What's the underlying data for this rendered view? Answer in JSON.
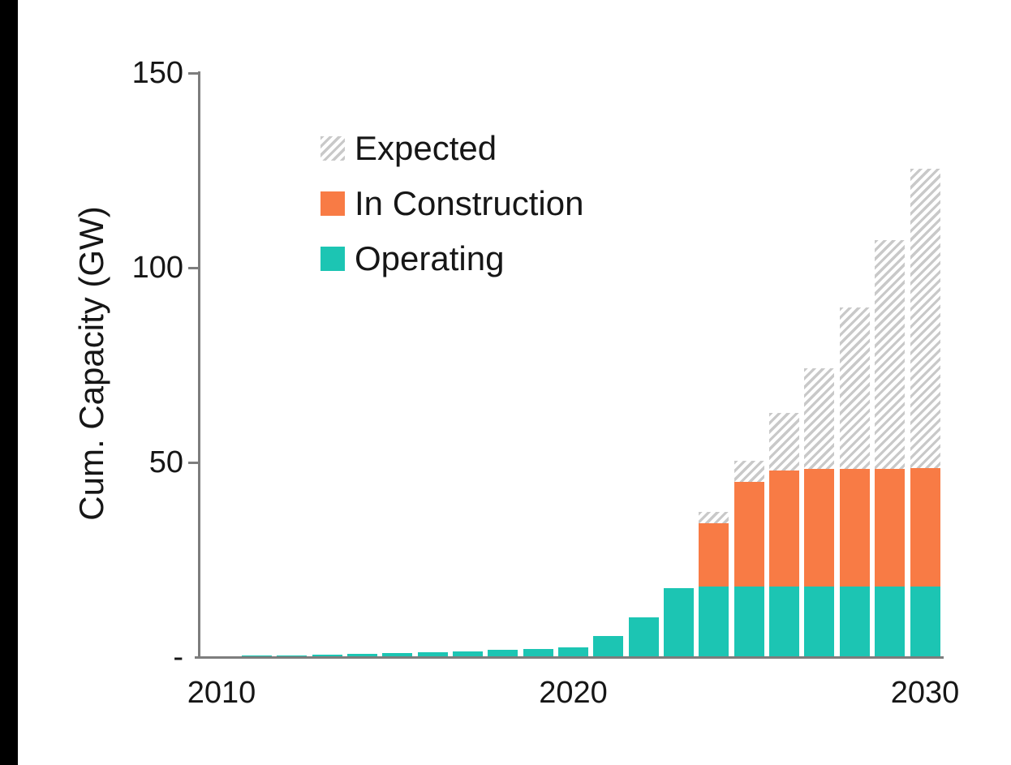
{
  "page": {
    "background_color": "#ffffff",
    "left_strip_color": "#000000"
  },
  "chart_data": {
    "type": "bar",
    "stacked": true,
    "title": "",
    "xlabel": "",
    "ylabel": "Cum. Capacity (GW)",
    "ylim": [
      0,
      150
    ],
    "grid": false,
    "legend_position": "upper-left-inside",
    "axis_color": "#7d7d7d",
    "text_color": "#161616",
    "categories": [
      2010,
      2011,
      2012,
      2013,
      2014,
      2015,
      2016,
      2017,
      2018,
      2019,
      2020,
      2021,
      2022,
      2023,
      2024,
      2025,
      2026,
      2027,
      2028,
      2029,
      2030
    ],
    "series": [
      {
        "name": "Operating",
        "color": "#1cc5b3",
        "pattern": "solid",
        "values": [
          0.3,
          0.4,
          0.5,
          0.7,
          0.9,
          1.1,
          1.3,
          1.5,
          1.8,
          2.0,
          2.5,
          5.5,
          10.2,
          17.7,
          18.2,
          18.2,
          18.2,
          18.2,
          18.2,
          18.2,
          18.2
        ]
      },
      {
        "name": "In Construction",
        "color": "#f87b45",
        "pattern": "solid",
        "values": [
          0,
          0,
          0,
          0,
          0,
          0,
          0,
          0,
          0,
          0,
          0,
          0,
          0,
          0,
          16.1,
          26.7,
          29.7,
          30.1,
          30.1,
          30.2,
          30.3
        ]
      },
      {
        "name": "Expected",
        "color": "#c9c9c9",
        "pattern": "hatch",
        "values": [
          0,
          0,
          0,
          0,
          0,
          0,
          0,
          0,
          0,
          0,
          0,
          0,
          0,
          0,
          3.0,
          5.6,
          14.8,
          25.8,
          41.4,
          58.6,
          77.0
        ]
      }
    ],
    "legend": [
      "Expected",
      "In Construction",
      "Operating"
    ],
    "y_ticks": [
      {
        "value": 150,
        "label": "150"
      },
      {
        "value": 100,
        "label": "100"
      },
      {
        "value": 50,
        "label": "50"
      },
      {
        "value": 0,
        "label": "-"
      }
    ],
    "x_ticks": [
      {
        "year": 2010,
        "label": "2010"
      },
      {
        "year": 2020,
        "label": "2020"
      },
      {
        "year": 2030,
        "label": "2030"
      }
    ]
  }
}
